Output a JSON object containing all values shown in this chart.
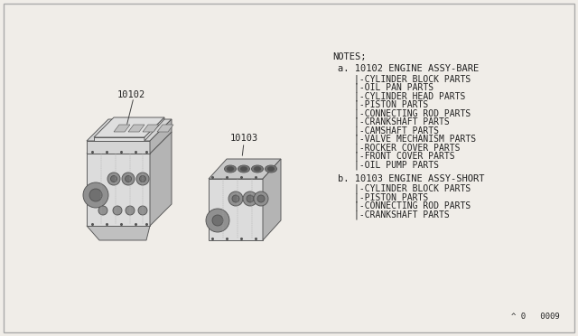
{
  "background_color": "#f0ede8",
  "border_color": "#aaaaaa",
  "notes_header": "NOTES;",
  "section_a_header": "a. 10102 ENGINE ASSY-BARE",
  "section_a_parts": [
    "|-CYLINDER BLOCK PARTS",
    "|-OIL PAN PARTS",
    "|-CYLINDER HEAD PARTS",
    "|-PISTON PARTS",
    "|-CONNECTING ROD PARTS",
    "|-CRANKSHAFT PARTS",
    "|-CAMSHAFT PARTS",
    "|-VALVE MECHANISM PARTS",
    "|-ROCKER COVER PARTS",
    "|-FRONT COVER PARTS",
    "|-OIL PUMP PARTS"
  ],
  "section_b_header": "b. 10103 ENGINE ASSY-SHORT",
  "section_b_parts": [
    "|-CYLINDER BLOCK PARTS",
    "|-PISTON PARTS",
    "|-CONNECTING ROD PARTS",
    "|-CRANKSHAFT PARTS"
  ],
  "label_10102": "10102",
  "label_10103": "10103",
  "part_number": "^ 0   0009",
  "text_color": "#222222",
  "line_color": "#444444",
  "engine_edge_color": "#555555",
  "font_size_notes": 7.5,
  "font_size_header_a": 7.5,
  "font_size_parts": 7.0,
  "font_size_label": 7.5,
  "font_size_part_num": 6.5
}
